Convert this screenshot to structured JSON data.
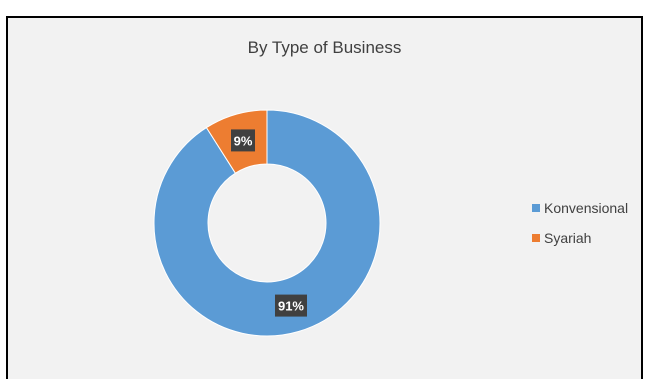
{
  "chart_data": {
    "type": "pie",
    "variant": "doughnut",
    "title": "By Type of Business",
    "categories": [
      "Konvensional",
      "Syariah"
    ],
    "values": [
      91,
      9
    ],
    "labels": [
      "91%",
      "9%"
    ],
    "colors": [
      "#5b9bd5",
      "#ed7d31"
    ],
    "legend_position": "right",
    "data_label_background": "#404040"
  }
}
